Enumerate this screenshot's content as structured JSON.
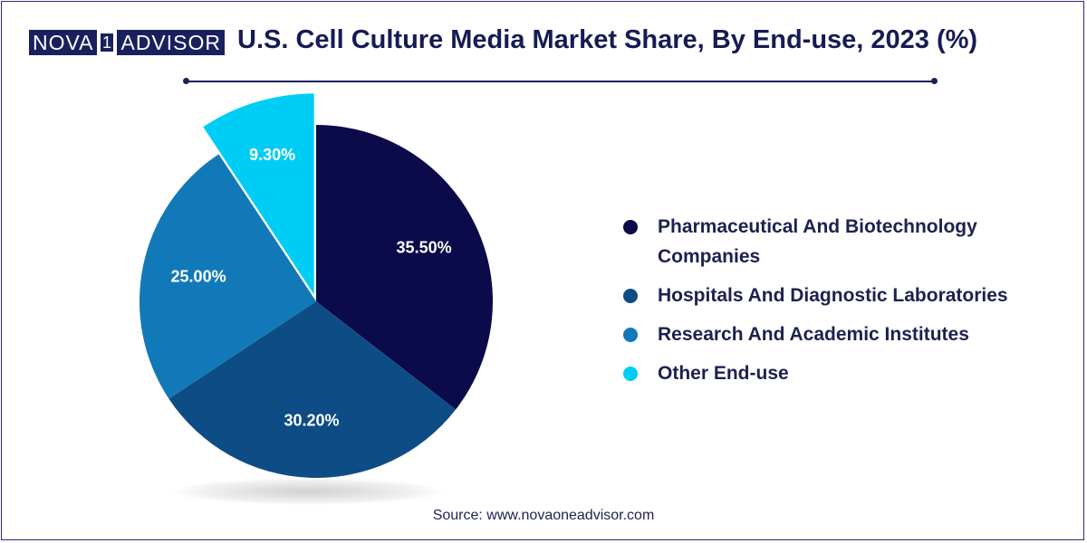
{
  "header": {
    "logo": {
      "part1": "NOVA",
      "box": "1",
      "part2": "ADVISOR"
    },
    "title": "U.S. Cell Culture Media Market Share, By End-use, 2023 (%)"
  },
  "chart_data": {
    "type": "pie",
    "title": "U.S. Cell Culture Media Market Share, By End-use, 2023 (%)",
    "categories": [
      "Pharmaceutical And Biotechnology Companies",
      "Hospitals And Diagnostic Laboratories",
      "Research And Academic Institutes",
      "Other End-use"
    ],
    "values": [
      35.5,
      30.2,
      25.0,
      9.3
    ],
    "labels": [
      "35.50%",
      "30.20%",
      "25.00%",
      "9.30%"
    ],
    "colors": [
      "#0b0a4a",
      "#0e4c85",
      "#1279b8",
      "#00cdf5"
    ],
    "legend_position": "right",
    "exploded_slice": "Other End-use"
  },
  "legend": {
    "items": [
      {
        "label": "Pharmaceutical And Biotechnology Companies",
        "color": "#0b0a4a"
      },
      {
        "label": "Hospitals And Diagnostic Laboratories",
        "color": "#0e4c85"
      },
      {
        "label": "Research And Academic Institutes",
        "color": "#1279b8"
      },
      {
        "label": "Other End-use",
        "color": "#00cdf5"
      }
    ]
  },
  "footer": {
    "source": "Source: www.novaoneadvisor.com"
  }
}
